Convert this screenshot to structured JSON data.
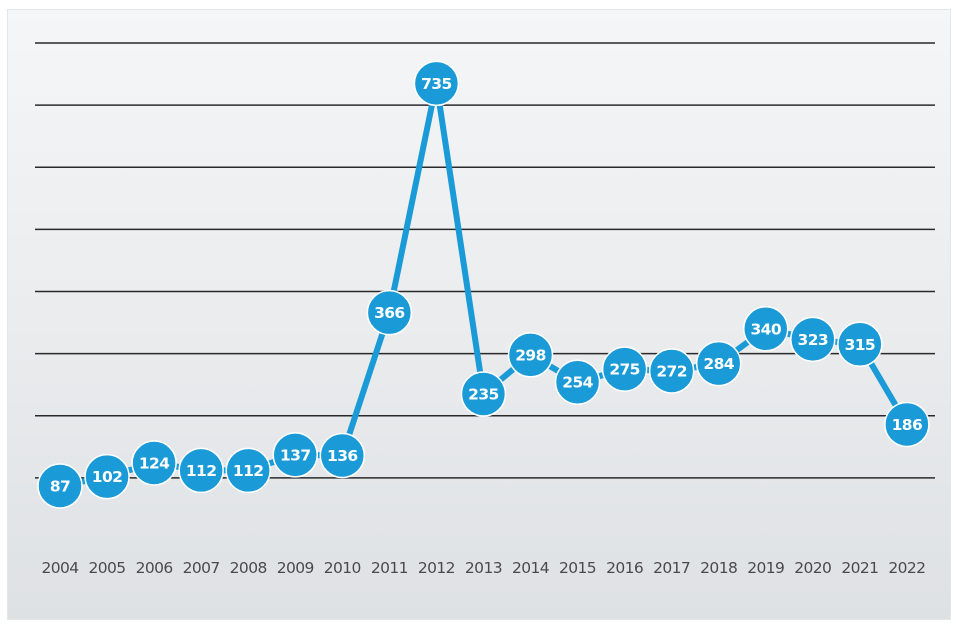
{
  "chart_data": {
    "type": "line",
    "categories": [
      "2004",
      "2005",
      "2006",
      "2007",
      "2008",
      "2009",
      "2010",
      "2011",
      "2012",
      "2013",
      "2014",
      "2015",
      "2016",
      "2017",
      "2018",
      "2019",
      "2020",
      "2021",
      "2022"
    ],
    "series": [
      {
        "values": [
          87,
          102,
          124,
          112,
          112,
          137,
          136,
          366,
          735,
          235,
          298,
          254,
          275,
          272,
          284,
          340,
          323,
          315,
          186
        ],
        "labels": [
          "87",
          "102",
          "124",
          "112",
          "112",
          "137",
          "136",
          "366",
          "735",
          "235",
          "298",
          "254",
          "275",
          "272",
          "284",
          "340",
          "323",
          "315",
          "186"
        ],
        "color": "#1a9ad6"
      }
    ],
    "ylim": [
      0,
      800
    ],
    "gridlines": 8,
    "grid": true,
    "xlabel": "",
    "ylabel": "",
    "title": ""
  }
}
